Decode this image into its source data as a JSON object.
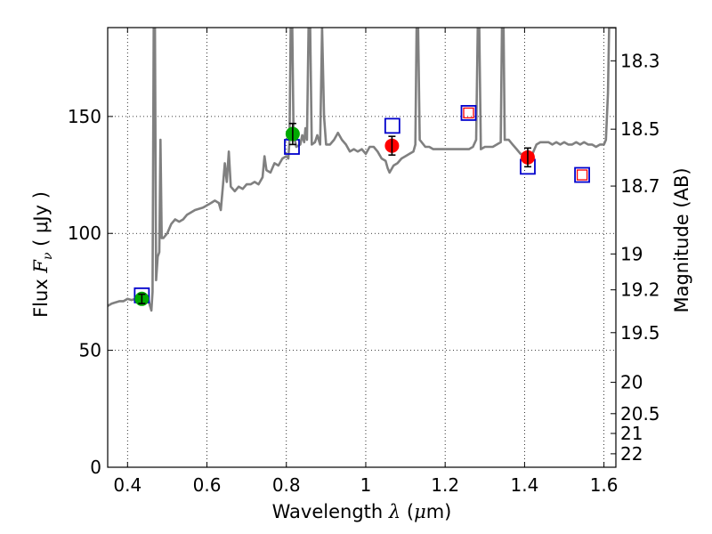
{
  "chart_data": {
    "type": "scatter",
    "xlabel": {
      "prefix": "Wavelength ",
      "symbol": "λ",
      "unit_open": " (",
      "unit_mu": "μ",
      "unit_rest": "m)"
    },
    "ylabel": {
      "prefix": "Flux  ",
      "symbol": "F",
      "sub": "ν",
      "unit": "  ( μJy )"
    },
    "y2label": "Magnitude (AB)",
    "xlim": [
      0.35,
      1.63
    ],
    "ylim": [
      0,
      188
    ],
    "x_ticks": [
      0.4,
      0.6,
      0.8,
      1.0,
      1.2,
      1.4,
      1.6
    ],
    "x_tick_labels": [
      "0.4",
      "0.6",
      "0.8",
      "1",
      "1.2",
      "1.4",
      "1.6"
    ],
    "y_ticks": [
      0,
      50,
      100,
      150
    ],
    "y_tick_labels": [
      "0",
      "50",
      "100",
      "150"
    ],
    "y2_ticks": [
      18.3,
      18.5,
      18.7,
      19,
      19.2,
      19.5,
      20,
      20.5,
      21,
      22
    ],
    "y2_tick_labels": [
      "18.3",
      "18.5",
      "18.7",
      "19",
      "19.2",
      "19.5",
      "20",
      "20.5",
      "21",
      "22"
    ],
    "grid": true,
    "colors": {
      "spectrum": "#808080",
      "green_points": "#00aa00",
      "red_points": "#ff0000",
      "model_squares": "#0000cc",
      "red_squares": "#ff0000",
      "error_bars": "#000000"
    },
    "spectrum": [
      [
        0.35,
        69
      ],
      [
        0.36,
        70
      ],
      [
        0.37,
        70.5
      ],
      [
        0.38,
        71
      ],
      [
        0.39,
        71
      ],
      [
        0.4,
        72
      ],
      [
        0.41,
        71.5
      ],
      [
        0.42,
        72
      ],
      [
        0.43,
        72.5
      ],
      [
        0.44,
        73
      ],
      [
        0.45,
        73
      ],
      [
        0.455,
        70
      ],
      [
        0.46,
        67
      ],
      [
        0.463,
        75
      ],
      [
        0.466,
        188
      ],
      [
        0.469,
        188
      ],
      [
        0.472,
        80
      ],
      [
        0.476,
        90
      ],
      [
        0.48,
        92
      ],
      [
        0.483,
        140
      ],
      [
        0.486,
        98
      ],
      [
        0.49,
        98
      ],
      [
        0.5,
        100
      ],
      [
        0.51,
        104
      ],
      [
        0.52,
        106
      ],
      [
        0.53,
        105
      ],
      [
        0.54,
        106
      ],
      [
        0.55,
        108
      ],
      [
        0.56,
        109
      ],
      [
        0.57,
        110
      ],
      [
        0.58,
        110.5
      ],
      [
        0.59,
        111
      ],
      [
        0.6,
        112
      ],
      [
        0.61,
        113
      ],
      [
        0.62,
        114
      ],
      [
        0.63,
        113
      ],
      [
        0.635,
        110
      ],
      [
        0.64,
        120
      ],
      [
        0.645,
        130
      ],
      [
        0.65,
        122
      ],
      [
        0.655,
        135
      ],
      [
        0.66,
        120
      ],
      [
        0.67,
        118
      ],
      [
        0.68,
        120
      ],
      [
        0.69,
        119
      ],
      [
        0.7,
        121
      ],
      [
        0.71,
        121
      ],
      [
        0.72,
        122
      ],
      [
        0.73,
        121
      ],
      [
        0.74,
        124
      ],
      [
        0.745,
        133
      ],
      [
        0.75,
        127
      ],
      [
        0.76,
        126
      ],
      [
        0.77,
        130
      ],
      [
        0.78,
        129
      ],
      [
        0.79,
        132
      ],
      [
        0.8,
        133
      ],
      [
        0.805,
        132
      ],
      [
        0.808,
        140
      ],
      [
        0.811,
        188
      ],
      [
        0.815,
        188
      ],
      [
        0.818,
        143
      ],
      [
        0.825,
        137
      ],
      [
        0.835,
        138
      ],
      [
        0.84,
        142
      ],
      [
        0.845,
        139
      ],
      [
        0.848,
        145
      ],
      [
        0.852,
        140
      ],
      [
        0.856,
        188
      ],
      [
        0.86,
        188
      ],
      [
        0.864,
        138
      ],
      [
        0.872,
        139
      ],
      [
        0.878,
        142
      ],
      [
        0.885,
        138
      ],
      [
        0.89,
        188
      ],
      [
        0.895,
        150
      ],
      [
        0.9,
        138
      ],
      [
        0.91,
        138
      ],
      [
        0.92,
        140
      ],
      [
        0.93,
        143
      ],
      [
        0.94,
        140
      ],
      [
        0.95,
        138
      ],
      [
        0.96,
        135
      ],
      [
        0.97,
        136
      ],
      [
        0.98,
        135
      ],
      [
        0.99,
        136
      ],
      [
        1.0,
        134
      ],
      [
        1.01,
        137
      ],
      [
        1.02,
        137
      ],
      [
        1.03,
        135
      ],
      [
        1.04,
        132
      ],
      [
        1.05,
        131
      ],
      [
        1.055,
        128
      ],
      [
        1.06,
        126
      ],
      [
        1.07,
        129
      ],
      [
        1.08,
        130
      ],
      [
        1.09,
        132
      ],
      [
        1.1,
        133
      ],
      [
        1.11,
        134
      ],
      [
        1.12,
        135
      ],
      [
        1.125,
        138
      ],
      [
        1.128,
        188
      ],
      [
        1.132,
        188
      ],
      [
        1.136,
        140
      ],
      [
        1.15,
        137
      ],
      [
        1.16,
        137
      ],
      [
        1.17,
        136
      ],
      [
        1.18,
        136
      ],
      [
        1.2,
        136
      ],
      [
        1.22,
        136
      ],
      [
        1.24,
        136
      ],
      [
        1.25,
        136
      ],
      [
        1.26,
        136
      ],
      [
        1.27,
        137
      ],
      [
        1.278,
        140
      ],
      [
        1.282,
        188
      ],
      [
        1.286,
        188
      ],
      [
        1.29,
        136
      ],
      [
        1.3,
        137
      ],
      [
        1.32,
        137
      ],
      [
        1.33,
        138
      ],
      [
        1.34,
        139
      ],
      [
        1.343,
        188
      ],
      [
        1.347,
        188
      ],
      [
        1.35,
        140
      ],
      [
        1.36,
        140
      ],
      [
        1.37,
        138
      ],
      [
        1.38,
        136
      ],
      [
        1.39,
        134
      ],
      [
        1.4,
        134
      ],
      [
        1.41,
        135
      ],
      [
        1.42,
        134
      ],
      [
        1.43,
        138
      ],
      [
        1.44,
        139
      ],
      [
        1.45,
        139
      ],
      [
        1.46,
        139
      ],
      [
        1.47,
        138
      ],
      [
        1.48,
        139
      ],
      [
        1.49,
        138
      ],
      [
        1.5,
        139
      ],
      [
        1.51,
        138
      ],
      [
        1.52,
        138
      ],
      [
        1.53,
        139
      ],
      [
        1.54,
        138
      ],
      [
        1.55,
        139
      ],
      [
        1.56,
        138
      ],
      [
        1.57,
        138
      ],
      [
        1.58,
        137
      ],
      [
        1.59,
        138
      ],
      [
        1.6,
        138
      ],
      [
        1.605,
        140
      ],
      [
        1.61,
        160
      ],
      [
        1.613,
        188
      ],
      [
        1.62,
        188
      ],
      [
        1.63,
        188
      ]
    ],
    "green_points": [
      {
        "x": 0.436,
        "y": 72,
        "err": 2
      },
      {
        "x": 0.816,
        "y": 142.5,
        "err": 4.5
      }
    ],
    "red_points": [
      {
        "x": 1.066,
        "y": 137.5,
        "err": 4
      },
      {
        "x": 1.408,
        "y": 132.5,
        "err": 4
      }
    ],
    "model_squares": [
      {
        "x": 0.436,
        "y": 73.5
      },
      {
        "x": 0.814,
        "y": 137
      },
      {
        "x": 1.067,
        "y": 146
      },
      {
        "x": 1.259,
        "y": 151.5
      },
      {
        "x": 1.408,
        "y": 128.5
      },
      {
        "x": 1.545,
        "y": 125
      }
    ],
    "red_squares": [
      {
        "x": 1.259,
        "y": 151.5
      },
      {
        "x": 1.545,
        "y": 125
      }
    ]
  }
}
